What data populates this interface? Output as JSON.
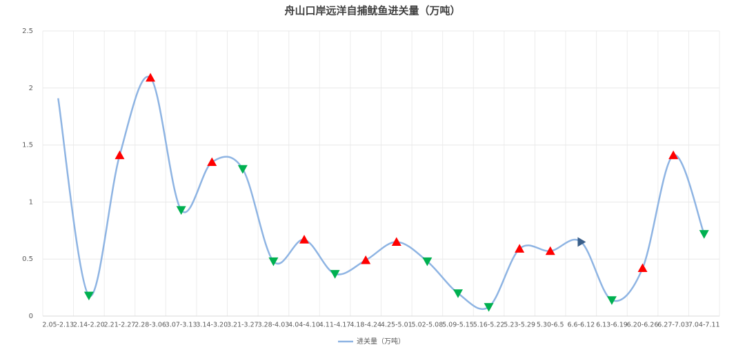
{
  "chart_data": {
    "type": "line",
    "title": "舟山口岸远洋自捕鱿鱼进关量（万吨）",
    "categories": [
      "2.05-2.13",
      "2.14-2.20",
      "2.21-2.27",
      "2.28-3.06",
      "3.07-3.13",
      "3.14-3.20",
      "3.21-3.27",
      "3.28-4.03",
      "4.04-4.10",
      "4.11-4.17",
      "4.18-4.24",
      "4.25-5.01",
      "5.02-5.08",
      "5.09-5.15",
      "5.16-5.22",
      "5.23-5.29",
      "5.30-6.5",
      "6.6-6.12",
      "6.13-6.19",
      "6.20-6.26",
      "6.27-7.03",
      "7.04-7.11"
    ],
    "series": [
      {
        "name": "进关量（万吨）",
        "color": "#8eb4e3",
        "values": [
          1.91,
          0.18,
          1.41,
          2.09,
          0.93,
          1.35,
          1.29,
          0.48,
          0.67,
          0.37,
          0.49,
          0.65,
          0.48,
          0.2,
          0.08,
          0.59,
          0.57,
          0.65,
          0.14,
          0.42,
          1.41,
          0.72
        ],
        "markers": [
          null,
          "down",
          "up",
          "up",
          "down",
          "up",
          "down",
          "down",
          "up",
          "down",
          "up",
          "up",
          "down",
          "down",
          "down",
          "up",
          "up",
          "right",
          "down",
          "up",
          "up",
          "down"
        ]
      }
    ],
    "marker_colors": {
      "up": "#ff0000",
      "down": "#00b050",
      "right": "#3a5f8a"
    },
    "ylim": [
      0,
      2.5
    ],
    "yticks": [
      0,
      0.5,
      1,
      1.5,
      2,
      2.5
    ],
    "grid": true,
    "legend": "bottom"
  }
}
